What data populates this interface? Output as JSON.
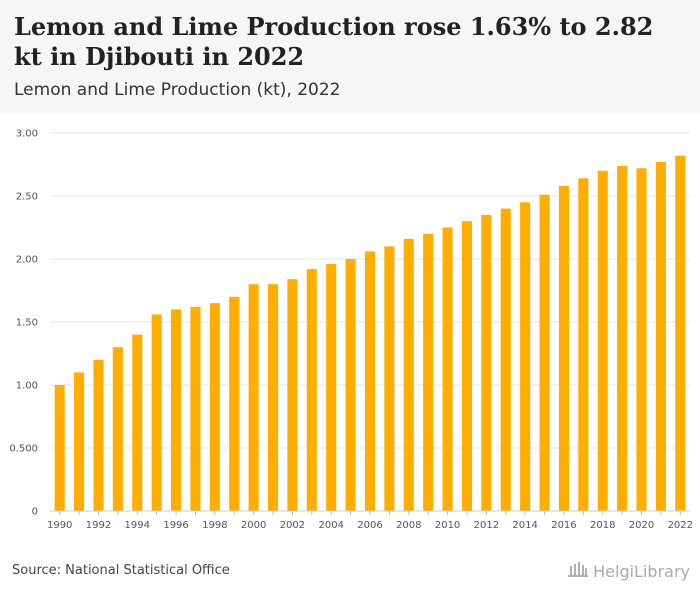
{
  "header": {
    "title": "Lemon and Lime Production rose 1.63% to 2.82 kt in Djibouti in 2022",
    "subtitle": "Lemon and Lime Production (kt), 2022"
  },
  "footer": {
    "source": "Source: National Statistical Office",
    "logo_text": "HelgiLibrary"
  },
  "colors": {
    "bar": "#ffae00",
    "grid": "#e4e4e4",
    "header_bg": "#f6f6f6"
  },
  "icons": {
    "logo": "library-building-icon"
  },
  "chart_data": {
    "type": "bar",
    "title": "Lemon and Lime Production (kt), 2022",
    "xlabel": "",
    "ylabel": "",
    "ylim": [
      0,
      3
    ],
    "yticks": [
      0,
      0.5,
      1,
      1.5,
      2,
      2.5,
      3
    ],
    "ytick_labels": [
      "0",
      "0.500",
      "1.00",
      "1.50",
      "2.00",
      "2.50",
      "3.00"
    ],
    "categories": [
      1990,
      1991,
      1992,
      1993,
      1994,
      1995,
      1996,
      1997,
      1998,
      1999,
      2000,
      2001,
      2002,
      2003,
      2004,
      2005,
      2006,
      2007,
      2008,
      2009,
      2010,
      2011,
      2012,
      2013,
      2014,
      2015,
      2016,
      2017,
      2018,
      2019,
      2020,
      2021,
      2022
    ],
    "xtick_labels": [
      "1990",
      "1992",
      "1994",
      "1996",
      "1998",
      "2000",
      "2002",
      "2004",
      "2006",
      "2008",
      "2010",
      "2012",
      "2014",
      "2016",
      "2018",
      "2020",
      "2022"
    ],
    "values": [
      1.0,
      1.1,
      1.2,
      1.3,
      1.4,
      1.56,
      1.6,
      1.62,
      1.65,
      1.7,
      1.8,
      1.8,
      1.84,
      1.92,
      1.96,
      2.0,
      2.06,
      2.1,
      2.16,
      2.2,
      2.25,
      2.3,
      2.35,
      2.4,
      2.45,
      2.51,
      2.58,
      2.64,
      2.7,
      2.74,
      2.72,
      2.77,
      2.82
    ],
    "grid": true,
    "legend": "none"
  }
}
